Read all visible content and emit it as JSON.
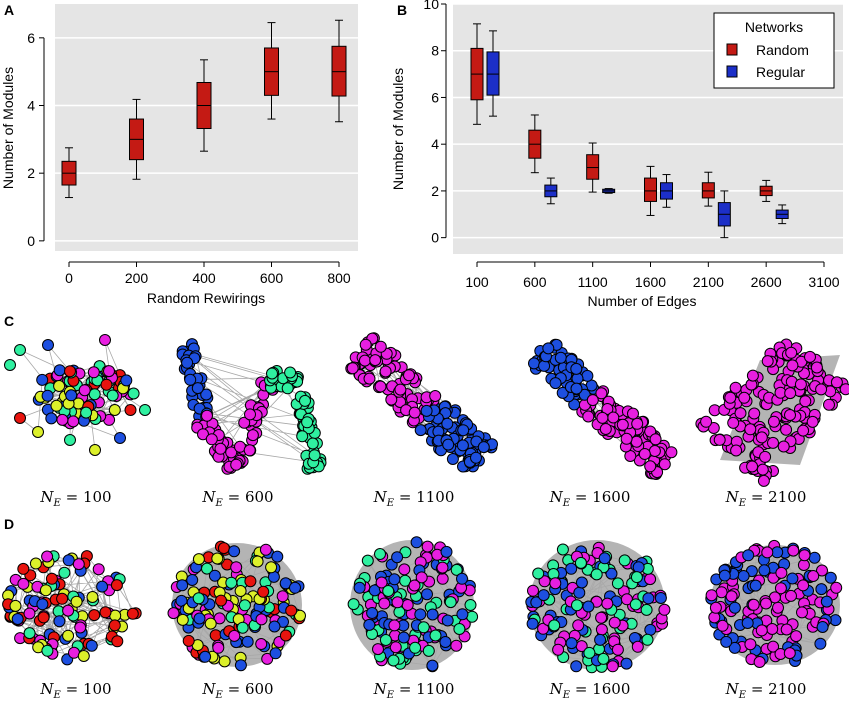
{
  "chart_data": [
    {
      "panel": "A",
      "type": "box",
      "xlabel": "Random Rewirings",
      "ylabel": "Number of Modules",
      "ylim": [
        -0.3,
        7
      ],
      "yticks": [
        0,
        2,
        4,
        6
      ],
      "categories": [
        "0",
        "200",
        "400",
        "600",
        "800"
      ],
      "color": "#c41a14",
      "boxes": [
        {
          "min": 1.28,
          "q1": 1.65,
          "median": 2.0,
          "q3": 2.35,
          "max": 2.75
        },
        {
          "min": 1.82,
          "q1": 2.4,
          "median": 3.0,
          "q3": 3.6,
          "max": 4.18
        },
        {
          "min": 2.65,
          "q1": 3.32,
          "median": 4.0,
          "q3": 4.68,
          "max": 5.35
        },
        {
          "min": 3.6,
          "q1": 4.3,
          "median": 5.0,
          "q3": 5.7,
          "max": 6.45
        },
        {
          "min": 3.52,
          "q1": 4.28,
          "median": 5.0,
          "q3": 5.75,
          "max": 6.52
        }
      ]
    },
    {
      "panel": "B",
      "type": "box",
      "xlabel": "Number of Edges",
      "ylabel": "Number of Modules",
      "ylim": [
        -0.7,
        10
      ],
      "yticks": [
        0,
        2,
        4,
        6,
        8,
        10
      ],
      "xlim": [
        0,
        3200
      ],
      "xticks": [
        100,
        600,
        1100,
        1600,
        2100,
        2600,
        3100
      ],
      "legend": {
        "title": "Networks",
        "position": "top-right",
        "entries": [
          "Random",
          "Regular"
        ]
      },
      "series": [
        {
          "name": "Random",
          "color": "#c41a14",
          "x": [
            100,
            600,
            1100,
            1600,
            2100,
            2600
          ],
          "boxes": [
            {
              "min": 4.85,
              "q1": 5.9,
              "median": 7.0,
              "q3": 8.1,
              "max": 9.15
            },
            {
              "min": 2.78,
              "q1": 3.4,
              "median": 4.0,
              "q3": 4.6,
              "max": 5.25
            },
            {
              "min": 1.95,
              "q1": 2.5,
              "median": 3.0,
              "q3": 3.55,
              "max": 4.05
            },
            {
              "min": 0.95,
              "q1": 1.55,
              "median": 2.0,
              "q3": 2.55,
              "max": 3.05
            },
            {
              "min": 1.35,
              "q1": 1.7,
              "median": 2.0,
              "q3": 2.35,
              "max": 2.8
            },
            {
              "min": 1.55,
              "q1": 1.8,
              "median": 2.0,
              "q3": 2.2,
              "max": 2.45
            }
          ]
        },
        {
          "name": "Regular",
          "color": "#1c2fc8",
          "x": [
            100,
            600,
            1100,
            1600,
            2100,
            2600
          ],
          "boxes": [
            {
              "min": 5.2,
              "q1": 6.1,
              "median": 7.0,
              "q3": 7.95,
              "max": 8.85
            },
            {
              "min": 1.45,
              "q1": 1.75,
              "median": 2.0,
              "q3": 2.25,
              "max": 2.55
            },
            {
              "min": 1.9,
              "q1": 1.93,
              "median": 2.0,
              "q3": 2.07,
              "max": 2.1
            },
            {
              "min": 1.3,
              "q1": 1.65,
              "median": 2.0,
              "q3": 2.35,
              "max": 2.7
            },
            {
              "min": 0.0,
              "q1": 0.5,
              "median": 1.0,
              "q3": 1.5,
              "max": 2.0
            },
            {
              "min": 0.6,
              "q1": 0.82,
              "median": 1.0,
              "q3": 1.18,
              "max": 1.4
            }
          ]
        }
      ]
    }
  ],
  "panels": {
    "C": {
      "letter": "C",
      "labels": [
        "100",
        "600",
        "1100",
        "1600",
        "2100"
      ]
    },
    "D": {
      "letter": "D",
      "labels": [
        "100",
        "600",
        "1100",
        "1600",
        "2100"
      ]
    }
  },
  "network_colors": {
    "red": "#e8140f",
    "blue": "#1d4fe0",
    "green": "#2ff0a0",
    "magenta": "#e81fe0",
    "yellow": "#dcf02a",
    "edge": "#a8a8a8",
    "background": "#b4b4b4"
  }
}
